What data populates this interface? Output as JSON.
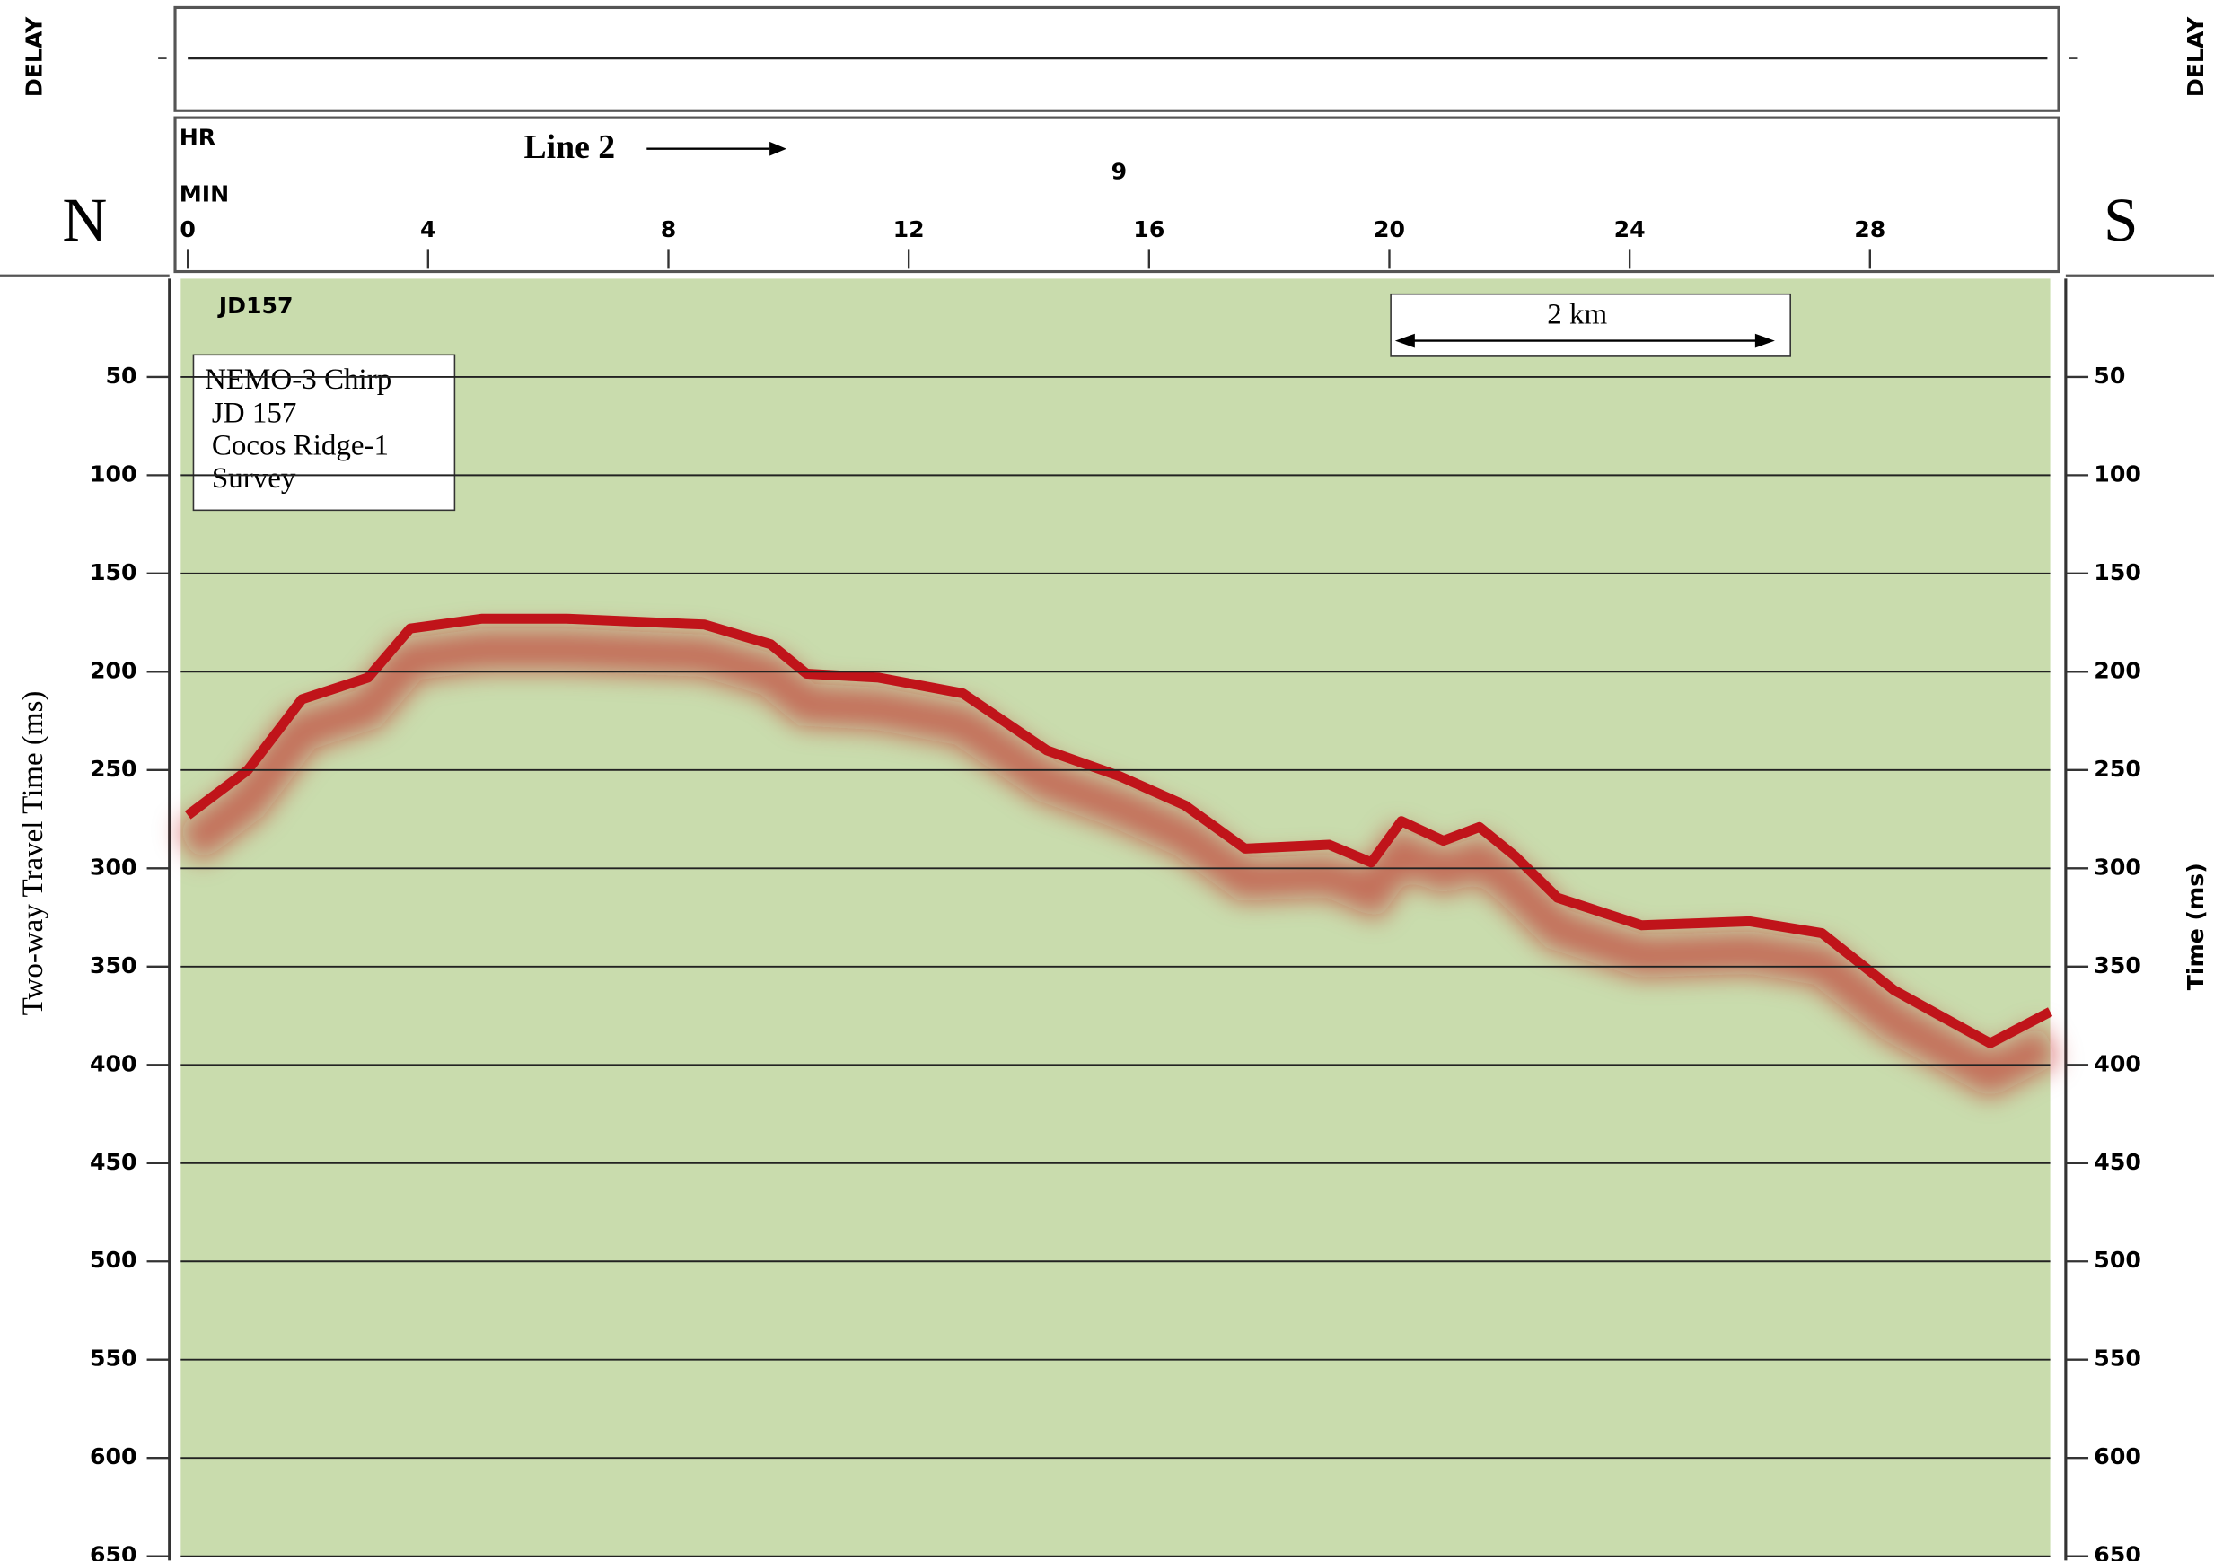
{
  "chart_data": {
    "type": "line",
    "delay_label_left": "DELAY",
    "delay_label_right": "DELAY",
    "left_label": "N",
    "right_label": "S",
    "line_label": "Line 2",
    "hour_axis_label": "HR",
    "minute_axis_label": "MIN",
    "hour_marks": [
      {
        "value": 15.5,
        "label": "9"
      }
    ],
    "record_label": "JD157",
    "info_box": [
      "NEMO-3 Chirp",
      "JD 157",
      "Cocos Ridge-1",
      "Survey"
    ],
    "scale_bar_label": "2 km",
    "ylabel": "Two-way Travel Time (ms)",
    "y2label": "Time (ms)",
    "x": [
      0,
      1,
      1.9,
      3,
      3.7,
      4.9,
      6.3,
      8.6,
      9.7,
      10.3,
      11.5,
      12.9,
      14.3,
      15.5,
      16.6,
      17.6,
      19,
      19.7,
      20.2,
      20.9,
      21.5,
      22.1,
      22.8,
      24.2,
      26,
      27.2,
      28.4,
      30,
      31
    ],
    "values": [
      273,
      250,
      214,
      203,
      178,
      173,
      173,
      176,
      186,
      201,
      203,
      211,
      240,
      253,
      268,
      290,
      288,
      297,
      276,
      286,
      279,
      294,
      315,
      329,
      327,
      333,
      362,
      389,
      373
    ],
    "color": "#c0141a",
    "background": "#c9dcad",
    "xlim": [
      0,
      31
    ],
    "xticks": [
      0,
      4,
      8,
      12,
      16,
      20,
      24,
      28
    ],
    "ylim": [
      0,
      650
    ],
    "yticks": [
      50,
      100,
      150,
      200,
      250,
      300,
      350,
      400,
      450,
      500,
      550,
      600,
      650
    ],
    "y2lim": [
      0,
      650
    ],
    "y2ticks": [
      50,
      100,
      150,
      200,
      250,
      300,
      350,
      400,
      450,
      500,
      550,
      600,
      650
    ],
    "grid": true
  }
}
